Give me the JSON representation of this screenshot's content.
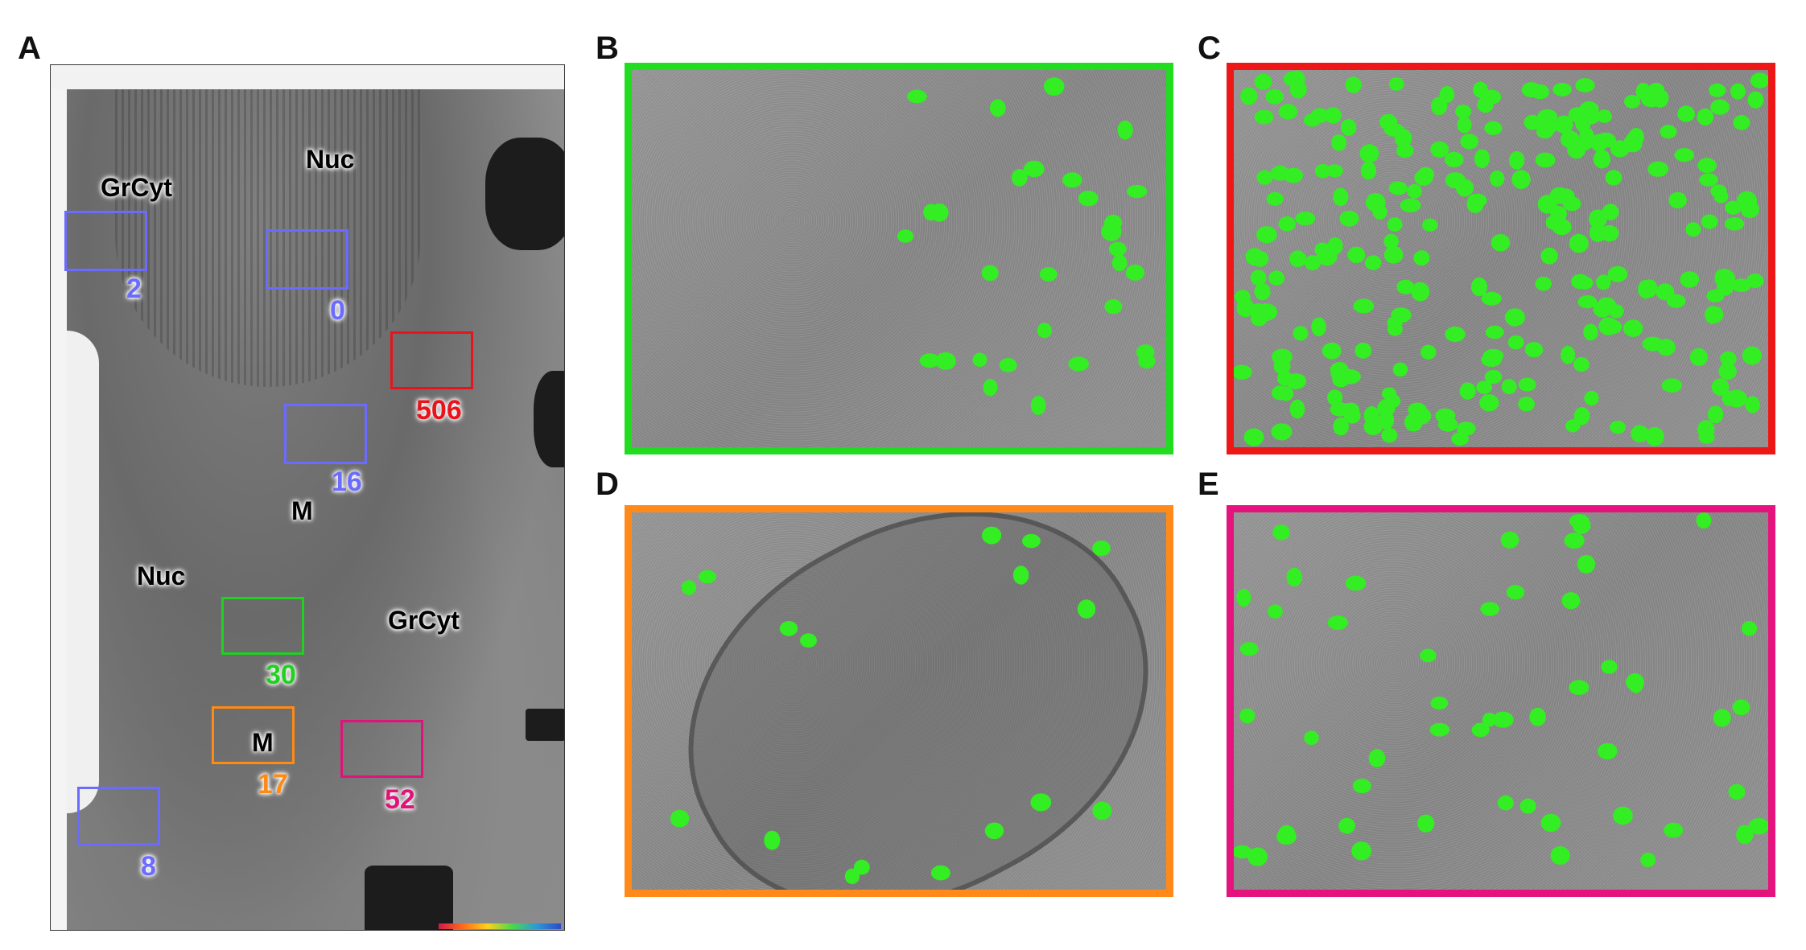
{
  "panels": {
    "A": {
      "letter": "A",
      "labels": {
        "grcyt_top": "GrCyt",
        "nuc_top": "Nuc",
        "m_mid": "M",
        "nuc_left": "Nuc",
        "grcyt_right": "GrCyt",
        "m_bottom": "M"
      },
      "rois": [
        {
          "id": "roi-2",
          "count": "2",
          "color": "#6b6bff"
        },
        {
          "id": "roi-0",
          "count": "0",
          "color": "#6b6bff"
        },
        {
          "id": "roi-506",
          "count": "506",
          "color": "#e8141b"
        },
        {
          "id": "roi-16",
          "count": "16",
          "color": "#6b6bff"
        },
        {
          "id": "roi-30",
          "count": "30",
          "color": "#21d021"
        },
        {
          "id": "roi-17",
          "count": "17",
          "color": "#ff8a14"
        },
        {
          "id": "roi-52",
          "count": "52",
          "color": "#e0137a"
        },
        {
          "id": "roi-8",
          "count": "8",
          "color": "#6b6bff"
        }
      ]
    },
    "B": {
      "letter": "B",
      "border_color": "#21dc21",
      "particle_count": 30
    },
    "C": {
      "letter": "C",
      "border_color": "#ee1717",
      "particle_count": 506
    },
    "D": {
      "letter": "D",
      "border_color": "#ff8a1a",
      "particle_count": 17
    },
    "E": {
      "letter": "E",
      "border_color": "#e5137d",
      "particle_count": 52
    }
  },
  "colors": {
    "particle": "#33ee22"
  }
}
